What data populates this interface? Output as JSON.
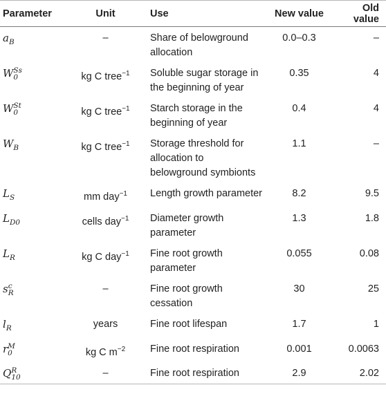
{
  "headers": {
    "parameter": "Parameter",
    "unit": "Unit",
    "use": "Use",
    "new_value": "New value",
    "old_value": "Old value"
  },
  "rows": [
    {
      "sym_base": "a",
      "sym_sub": "B",
      "sym_sup": "",
      "unit": "–",
      "unit_sup": "",
      "use": "Share of belowground allocation",
      "new_value": "0.0–0.3",
      "old_value": "–"
    },
    {
      "sym_base": "W",
      "sym_sub": "0",
      "sym_sup": "Ss",
      "unit": "kg C tree",
      "unit_sup": "−1",
      "use": "Soluble sugar storage in the beginning of year",
      "new_value": "0.35",
      "old_value": "4"
    },
    {
      "sym_base": "W",
      "sym_sub": "0",
      "sym_sup": "St",
      "unit": "kg C tree",
      "unit_sup": "−1",
      "use": "Starch storage in the beginning of year",
      "new_value": "0.4",
      "old_value": "4"
    },
    {
      "sym_base": "W",
      "sym_sub": "B",
      "sym_sup": "",
      "unit": "kg C tree",
      "unit_sup": "−1",
      "use": "Storage threshold for allocation to belowground symbionts",
      "new_value": "1.1",
      "old_value": "–"
    },
    {
      "sym_base": "L",
      "sym_sub": "S",
      "sym_sup": "",
      "unit": "mm day",
      "unit_sup": "−1",
      "use": "Length growth parameter",
      "new_value": "8.2",
      "old_value": "9.5"
    },
    {
      "sym_base": "L",
      "sym_sub": "D0",
      "sym_sup": "",
      "unit": "cells day",
      "unit_sup": "−1",
      "use": "Diameter growth parameter",
      "new_value": "1.3",
      "old_value": "1.8"
    },
    {
      "sym_base": "L",
      "sym_sub": "R",
      "sym_sup": "",
      "unit": "kg C day",
      "unit_sup": "−1",
      "use": "Fine root growth parameter",
      "new_value": "0.055",
      "old_value": "0.08"
    },
    {
      "sym_base": "s",
      "sym_sub": "R",
      "sym_sup": "c",
      "unit": "–",
      "unit_sup": "",
      "use": "Fine root growth cessation",
      "new_value": "30",
      "old_value": "25"
    },
    {
      "sym_base": "l",
      "sym_sub": "R",
      "sym_sup": "",
      "unit": "years",
      "unit_sup": "",
      "use": "Fine root lifespan",
      "new_value": "1.7",
      "old_value": "1"
    },
    {
      "sym_base": "r",
      "sym_sub": "0",
      "sym_sup": "M",
      "unit": "kg C m",
      "unit_sup": "−2",
      "use": "Fine root respiration",
      "new_value": "0.001",
      "old_value": "0.0063"
    },
    {
      "sym_base": "Q",
      "sym_sub": "10",
      "sym_sup": "R",
      "unit": "–",
      "unit_sup": "",
      "use": "Fine root respiration",
      "new_value": "2.9",
      "old_value": "2.02"
    }
  ]
}
